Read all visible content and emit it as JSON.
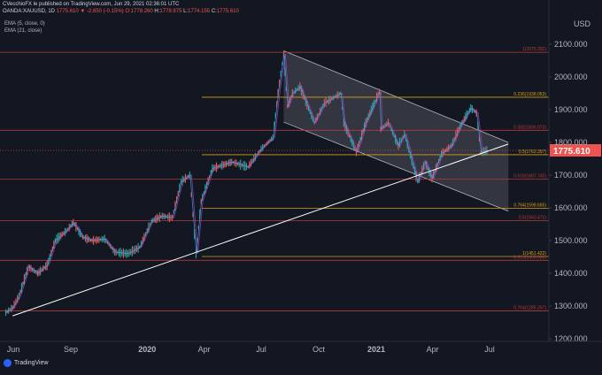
{
  "header": {
    "publish_line": "CVecchioFX le published on TradingView.com, Jun 29, 2021 02:36:01 UTC",
    "symbol": "OANDA:XAUUSD, 1D",
    "ohlc_prefix": "1775.610 ▼ -2.650 (-0.15%) O:",
    "open": "1778.260",
    "high_label": "H:",
    "high": "1778.975",
    "low_label": "L:",
    "low": "1774.155",
    "close_label": "C:",
    "close": "1775.610"
  },
  "indicators": {
    "ema5": "EMA (5, close, 0)",
    "ema21": "EMA (21, close)"
  },
  "currency": "USD",
  "current_price": "1775.610",
  "tv_brand": "TradingView",
  "colors": {
    "background": "#131722",
    "up": "#26a69a",
    "down": "#ef5350",
    "ema5": "#42a5f5",
    "ema21": "#ab47bc",
    "fib_red": "#b33a3a",
    "fib_orange": "#d4a017",
    "trendline": "#ffffff",
    "channel": "#b2b5be",
    "price_tag": "#ef5350"
  },
  "chart_data": {
    "type": "line",
    "ylim": [
      1200,
      2120
    ],
    "y_ticks": [
      "2100.000",
      "2000.000",
      "1900.000",
      "1800.000",
      "1700.000",
      "1600.000",
      "1500.000",
      "1400.000",
      "1300.000",
      "1200.000"
    ],
    "x_ticks": [
      "Jun",
      "Sep",
      "2020",
      "Apr",
      "Jul",
      "Oct",
      "2021",
      "Apr",
      "Jul"
    ],
    "x_tick_dates": [
      "2019-06",
      "2019-09",
      "2020-01",
      "2020-04",
      "2020-07",
      "2020-10",
      "2021-01",
      "2021-04",
      "2021-07"
    ],
    "price_path": [
      [
        "2019-05-20",
        1280
      ],
      [
        "2019-05-31",
        1295
      ],
      [
        "2019-06-10",
        1330
      ],
      [
        "2019-06-25",
        1420
      ],
      [
        "2019-07-10",
        1400
      ],
      [
        "2019-07-25",
        1425
      ],
      [
        "2019-08-07",
        1500
      ],
      [
        "2019-08-25",
        1530
      ],
      [
        "2019-09-05",
        1555
      ],
      [
        "2019-09-20",
        1510
      ],
      [
        "2019-10-05",
        1500
      ],
      [
        "2019-10-25",
        1505
      ],
      [
        "2019-11-10",
        1465
      ],
      [
        "2019-12-01",
        1460
      ],
      [
        "2019-12-20",
        1480
      ],
      [
        "2020-01-08",
        1560
      ],
      [
        "2020-01-25",
        1575
      ],
      [
        "2020-02-10",
        1570
      ],
      [
        "2020-02-24",
        1680
      ],
      [
        "2020-03-09",
        1700
      ],
      [
        "2020-03-19",
        1460
      ],
      [
        "2020-03-27",
        1620
      ],
      [
        "2020-04-14",
        1720
      ],
      [
        "2020-05-15",
        1740
      ],
      [
        "2020-06-10",
        1725
      ],
      [
        "2020-07-01",
        1780
      ],
      [
        "2020-07-20",
        1815
      ],
      [
        "2020-07-28",
        1950
      ],
      [
        "2020-08-06",
        2070
      ],
      [
        "2020-08-12",
        1910
      ],
      [
        "2020-08-20",
        1950
      ],
      [
        "2020-09-01",
        1970
      ],
      [
        "2020-09-24",
        1860
      ],
      [
        "2020-10-10",
        1920
      ],
      [
        "2020-11-05",
        1950
      ],
      [
        "2020-11-10",
        1860
      ],
      [
        "2020-11-30",
        1770
      ],
      [
        "2020-12-15",
        1860
      ],
      [
        "2021-01-06",
        1955
      ],
      [
        "2021-01-08",
        1840
      ],
      [
        "2021-01-20",
        1860
      ],
      [
        "2021-02-05",
        1790
      ],
      [
        "2021-02-15",
        1825
      ],
      [
        "2021-03-08",
        1680
      ],
      [
        "2021-03-20",
        1740
      ],
      [
        "2021-03-31",
        1690
      ],
      [
        "2021-04-15",
        1765
      ],
      [
        "2021-05-01",
        1790
      ],
      [
        "2021-05-15",
        1850
      ],
      [
        "2021-06-01",
        1905
      ],
      [
        "2021-06-10",
        1890
      ],
      [
        "2021-06-17",
        1770
      ],
      [
        "2021-06-29",
        1775.61
      ]
    ],
    "fib_levels": [
      {
        "label": "1(2075.282)",
        "price": 2075.28,
        "color": "red"
      },
      {
        "label": "0.236(1938.053)",
        "price": 1938.05,
        "color": "orange"
      },
      {
        "label": "0.382(1836.973)",
        "price": 1836.97,
        "color": "red"
      },
      {
        "label": "0.5(1762.357)",
        "price": 1762.36,
        "color": "orange"
      },
      {
        "label": "0.618(1687.745)",
        "price": 1687.75,
        "color": "red"
      },
      {
        "label": "0.764(1598.665)",
        "price": 1598.67,
        "color": "orange"
      },
      {
        "label": "0.5(1560.471)",
        "price": 1560.47,
        "color": "red"
      },
      {
        "label": "1(1451.422)",
        "price": 1451.42,
        "color": "orange"
      },
      {
        "label": "0.618(1439.698)",
        "price": 1439.7,
        "color": "red"
      },
      {
        "label": "0.764(1285.267)",
        "price": 1285.27,
        "color": "red"
      }
    ],
    "trendline": [
      [
        "2019-05-31",
        1270
      ],
      [
        "2021-07-31",
        1795
      ]
    ],
    "channel_upper": [
      [
        "2020-08-06",
        2080
      ],
      [
        "2021-07-31",
        1800
      ]
    ],
    "channel_lower": [
      [
        "2020-08-06",
        1862
      ],
      [
        "2021-07-31",
        1590
      ]
    ]
  }
}
